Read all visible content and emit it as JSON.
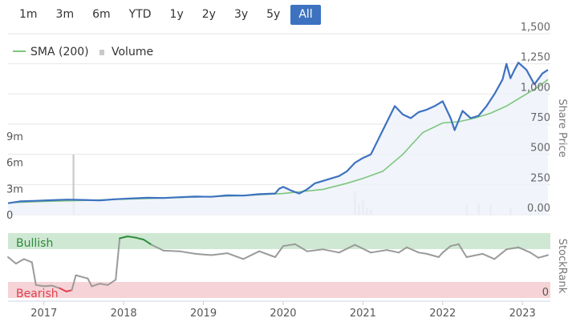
{
  "range_selector": {
    "buttons": [
      "1m",
      "3m",
      "6m",
      "YTD",
      "1y",
      "2y",
      "3y",
      "5y",
      "All"
    ],
    "active": "All",
    "active_color": "#3d72c0"
  },
  "legend": {
    "sma_label": "SMA (200)",
    "volume_label": "Volume"
  },
  "colors": {
    "price": "#3d72c0",
    "sma": "#7cc67c",
    "volume": "#c9c9c9",
    "bullish_zone": "#cfe8d3",
    "bearish_zone": "#f6d3d6",
    "stockrank_line": "#9a9a9a",
    "stockrank_bull": "#2e8b3a",
    "stockrank_bear": "#e04050",
    "grid": "#e6e6e6"
  },
  "chart_data": {
    "type": "line",
    "x_ticks": [
      "2017",
      "2018",
      "2019",
      "2020",
      "2021",
      "2022",
      "2023"
    ],
    "price_axis": {
      "label": "Share Price",
      "ticks": [
        "0.00",
        "250",
        "500",
        "750",
        "1,000",
        "1,250",
        "1,500"
      ],
      "range": [
        0,
        1500
      ]
    },
    "volume_axis": {
      "ticks": [
        "0",
        "3m",
        "6m",
        "9m"
      ],
      "range": [
        0,
        9000000
      ]
    },
    "stockrank_axis": {
      "label": "StockRank",
      "bottom_tick": "0",
      "zone_labels": {
        "bullish": "Bullish",
        "bearish": "Bearish"
      },
      "range": [
        0,
        100
      ]
    },
    "x_range": [
      2016.55,
      2023.35
    ],
    "series": [
      {
        "name": "Share Price",
        "points": [
          [
            2016.55,
            95
          ],
          [
            2016.7,
            110
          ],
          [
            2016.9,
            115
          ],
          [
            2017.1,
            120
          ],
          [
            2017.3,
            125
          ],
          [
            2017.5,
            122
          ],
          [
            2017.7,
            118
          ],
          [
            2017.9,
            128
          ],
          [
            2018.1,
            135
          ],
          [
            2018.3,
            140
          ],
          [
            2018.5,
            138
          ],
          [
            2018.7,
            145
          ],
          [
            2018.9,
            150
          ],
          [
            2019.1,
            148
          ],
          [
            2019.3,
            160
          ],
          [
            2019.5,
            158
          ],
          [
            2019.7,
            170
          ],
          [
            2019.9,
            175
          ],
          [
            2019.95,
            215
          ],
          [
            2020.0,
            230
          ],
          [
            2020.1,
            200
          ],
          [
            2020.2,
            175
          ],
          [
            2020.3,
            210
          ],
          [
            2020.4,
            260
          ],
          [
            2020.5,
            280
          ],
          [
            2020.6,
            300
          ],
          [
            2020.7,
            320
          ],
          [
            2020.8,
            360
          ],
          [
            2020.9,
            430
          ],
          [
            2021.0,
            470
          ],
          [
            2021.1,
            500
          ],
          [
            2021.25,
            700
          ],
          [
            2021.4,
            900
          ],
          [
            2021.5,
            830
          ],
          [
            2021.6,
            800
          ],
          [
            2021.7,
            850
          ],
          [
            2021.8,
            870
          ],
          [
            2021.9,
            900
          ],
          [
            2022.0,
            940
          ],
          [
            2022.1,
            800
          ],
          [
            2022.15,
            700
          ],
          [
            2022.25,
            860
          ],
          [
            2022.35,
            800
          ],
          [
            2022.45,
            820
          ],
          [
            2022.55,
            900
          ],
          [
            2022.65,
            1000
          ],
          [
            2022.75,
            1120
          ],
          [
            2022.8,
            1250
          ],
          [
            2022.85,
            1130
          ],
          [
            2022.9,
            1200
          ],
          [
            2022.95,
            1260
          ],
          [
            2023.05,
            1200
          ],
          [
            2023.15,
            1080
          ],
          [
            2023.25,
            1170
          ],
          [
            2023.32,
            1200
          ]
        ]
      },
      {
        "name": "SMA (200)",
        "points": [
          [
            2016.6,
            100
          ],
          [
            2017.0,
            110
          ],
          [
            2017.5,
            118
          ],
          [
            2018.0,
            128
          ],
          [
            2018.5,
            138
          ],
          [
            2019.0,
            148
          ],
          [
            2019.5,
            158
          ],
          [
            2020.0,
            175
          ],
          [
            2020.5,
            210
          ],
          [
            2020.8,
            260
          ],
          [
            2021.0,
            300
          ],
          [
            2021.25,
            360
          ],
          [
            2021.5,
            500
          ],
          [
            2021.75,
            680
          ],
          [
            2022.0,
            760
          ],
          [
            2022.2,
            770
          ],
          [
            2022.4,
            800
          ],
          [
            2022.6,
            840
          ],
          [
            2022.8,
            900
          ],
          [
            2023.0,
            980
          ],
          [
            2023.2,
            1060
          ],
          [
            2023.32,
            1120
          ]
        ]
      },
      {
        "name": "Volume",
        "bars": [
          [
            2017.37,
            6900000
          ],
          [
            2020.9,
            2700000
          ],
          [
            2020.95,
            1200000
          ],
          [
            2021.0,
            1700000
          ],
          [
            2021.05,
            800000
          ],
          [
            2021.1,
            600000
          ],
          [
            2022.3,
            1200000
          ],
          [
            2022.45,
            1300000
          ],
          [
            2022.6,
            1100000
          ],
          [
            2022.85,
            800000
          ],
          [
            2023.1,
            900000
          ],
          [
            2023.2,
            700000
          ]
        ]
      },
      {
        "name": "StockRank",
        "points": [
          [
            2016.55,
            63
          ],
          [
            2016.65,
            53
          ],
          [
            2016.75,
            60
          ],
          [
            2016.85,
            55
          ],
          [
            2016.9,
            20
          ],
          [
            2017.0,
            18
          ],
          [
            2017.1,
            19
          ],
          [
            2017.2,
            15
          ],
          [
            2017.28,
            10
          ],
          [
            2017.35,
            12
          ],
          [
            2017.4,
            35
          ],
          [
            2017.55,
            30
          ],
          [
            2017.6,
            18
          ],
          [
            2017.7,
            22
          ],
          [
            2017.8,
            20
          ],
          [
            2017.9,
            28
          ],
          [
            2017.95,
            92
          ],
          [
            2018.05,
            95
          ],
          [
            2018.15,
            93
          ],
          [
            2018.25,
            90
          ],
          [
            2018.35,
            82
          ],
          [
            2018.5,
            73
          ],
          [
            2018.7,
            72
          ],
          [
            2018.9,
            68
          ],
          [
            2019.1,
            66
          ],
          [
            2019.3,
            69
          ],
          [
            2019.5,
            60
          ],
          [
            2019.7,
            72
          ],
          [
            2019.9,
            63
          ],
          [
            2020.0,
            80
          ],
          [
            2020.15,
            83
          ],
          [
            2020.3,
            72
          ],
          [
            2020.5,
            75
          ],
          [
            2020.7,
            70
          ],
          [
            2020.9,
            82
          ],
          [
            2021.1,
            70
          ],
          [
            2021.3,
            74
          ],
          [
            2021.45,
            70
          ],
          [
            2021.55,
            78
          ],
          [
            2021.7,
            70
          ],
          [
            2021.8,
            68
          ],
          [
            2021.95,
            63
          ],
          [
            2022.0,
            70
          ],
          [
            2022.1,
            80
          ],
          [
            2022.2,
            83
          ],
          [
            2022.3,
            63
          ],
          [
            2022.5,
            68
          ],
          [
            2022.65,
            60
          ],
          [
            2022.8,
            75
          ],
          [
            2022.95,
            78
          ],
          [
            2023.1,
            70
          ],
          [
            2023.2,
            62
          ],
          [
            2023.32,
            66
          ]
        ]
      }
    ]
  }
}
